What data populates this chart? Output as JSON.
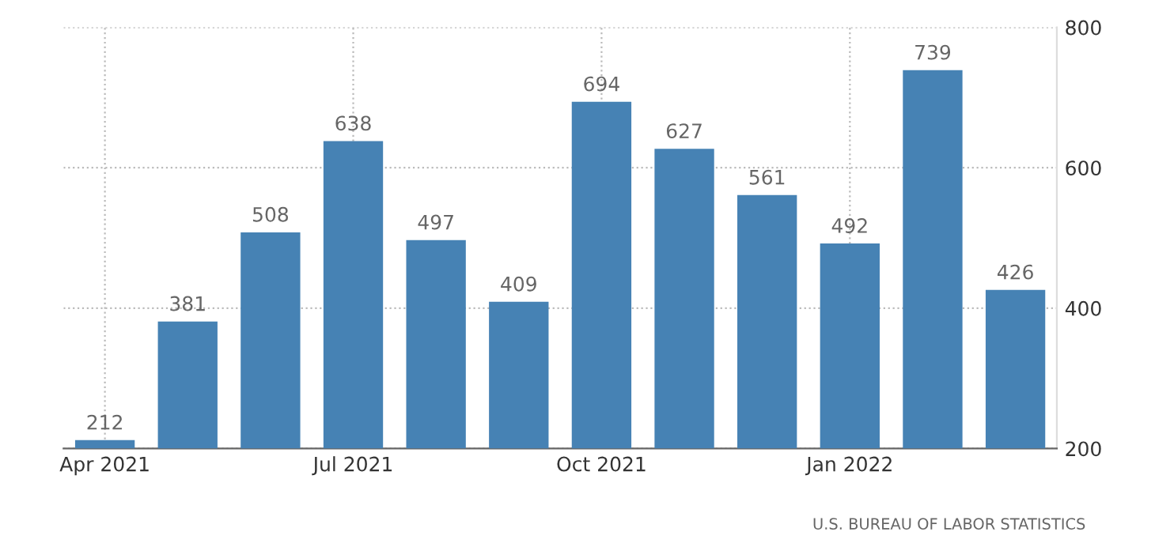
{
  "chart_data": {
    "type": "bar",
    "categories": [
      "Apr 2021",
      null,
      null,
      "Jul 2021",
      null,
      null,
      "Oct 2021",
      null,
      null,
      "Jan 2022",
      null,
      null
    ],
    "values": [
      212,
      381,
      508,
      638,
      497,
      409,
      694,
      627,
      561,
      492,
      739,
      426
    ],
    "color": "#4682b4",
    "ylim": [
      200,
      800
    ],
    "yticks": [
      200,
      400,
      600,
      800
    ],
    "grid": true,
    "data_labels": true,
    "annotations": [
      "U.S. BUREAU OF LABOR STATISTICS"
    ]
  }
}
